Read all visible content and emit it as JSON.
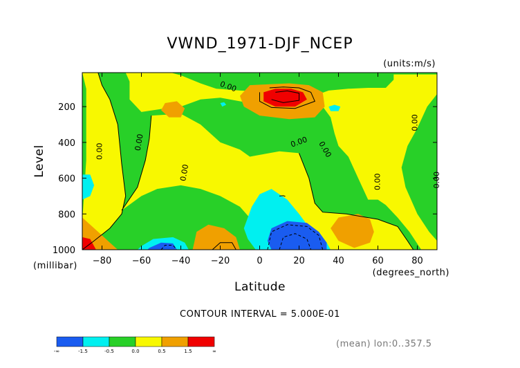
{
  "chart_data": {
    "type": "heatmap",
    "title": "VWND_1971-DJF_NCEP",
    "units": "(units:m/s)",
    "xlabel": "Latitude",
    "xunits": "(degrees_north)",
    "ylabel": "Level",
    "yunits": "(millibar)",
    "xlim": [
      -90,
      90
    ],
    "ylim": [
      1000,
      10
    ],
    "xticks": [
      -80,
      -60,
      -40,
      -20,
      0,
      20,
      40,
      60,
      80
    ],
    "yticks": [
      200,
      400,
      600,
      800,
      1000
    ],
    "contour_interval": "CONTOUR INTERVAL = 5.000E-01",
    "subtitle": "(mean) lon:0..357.5",
    "contour_labels": [
      "0.00",
      "0.00",
      "0.00",
      "0.00",
      "0.00",
      "0.00",
      "0.00",
      "0.00",
      "0.00"
    ],
    "colorbar": {
      "colors": [
        "#1a5cf0",
        "#00f0f0",
        "#28d028",
        "#f8f800",
        "#f0a000",
        "#f00000"
      ],
      "tick_labels": [
        "-∞",
        "-1.5",
        "-0.5",
        "0.0",
        "0.5",
        "1.5",
        "∞"
      ]
    },
    "level_colors": {
      "blue": "#1a5cf0",
      "cyan": "#00f0f0",
      "green": "#28d028",
      "yellow": "#f8f800",
      "orange": "#f0a000",
      "red": "#f00000"
    },
    "regions": [
      {
        "level": "green",
        "points": [
          [
            -90,
            10
          ],
          [
            90,
            10
          ],
          [
            90,
            1000
          ],
          [
            -90,
            1000
          ]
        ]
      },
      {
        "level": "yellow",
        "points": [
          [
            -90,
            10
          ],
          [
            -82,
            10
          ],
          [
            -80,
            80
          ],
          [
            -76,
            160
          ],
          [
            -72,
            300
          ],
          [
            -70,
            520
          ],
          [
            -68,
            700
          ],
          [
            -70,
            800
          ],
          [
            -76,
            880
          ],
          [
            -84,
            950
          ],
          [
            -90,
            1000
          ],
          [
            -90,
            840
          ],
          [
            -88,
            500
          ],
          [
            -88,
            250
          ],
          [
            -88,
            100
          ]
        ]
      },
      {
        "level": "yellow",
        "points": [
          [
            -68,
            10
          ],
          [
            -45,
            10
          ],
          [
            -40,
            25
          ],
          [
            -30,
            70
          ],
          [
            -22,
            100
          ],
          [
            -10,
            110
          ],
          [
            0,
            115
          ],
          [
            10,
            160
          ],
          [
            20,
            190
          ],
          [
            25,
            150
          ],
          [
            35,
            110
          ],
          [
            45,
            100
          ],
          [
            55,
            95
          ],
          [
            64,
            95
          ],
          [
            68,
            50
          ],
          [
            68,
            20
          ],
          [
            90,
            20
          ],
          [
            90,
            130
          ],
          [
            85,
            200
          ],
          [
            80,
            320
          ],
          [
            75,
            420
          ],
          [
            72,
            540
          ],
          [
            74,
            650
          ],
          [
            80,
            800
          ],
          [
            86,
            900
          ],
          [
            90,
            950
          ],
          [
            90,
            1000
          ],
          [
            82,
            1000
          ],
          [
            76,
            900
          ],
          [
            70,
            820
          ],
          [
            64,
            750
          ],
          [
            60,
            720
          ],
          [
            55,
            720
          ],
          [
            50,
            600
          ],
          [
            45,
            480
          ],
          [
            40,
            420
          ],
          [
            38,
            350
          ],
          [
            36,
            260
          ],
          [
            32,
            200
          ],
          [
            20,
            190
          ],
          [
            -5,
            180
          ],
          [
            -20,
            150
          ],
          [
            -30,
            160
          ],
          [
            -40,
            200
          ],
          [
            -48,
            210
          ],
          [
            -60,
            230
          ],
          [
            -66,
            160
          ],
          [
            -66,
            60
          ]
        ]
      },
      {
        "level": "yellow",
        "points": [
          [
            -55,
            250
          ],
          [
            -40,
            240
          ],
          [
            -30,
            300
          ],
          [
            -20,
            400
          ],
          [
            -10,
            440
          ],
          [
            -5,
            480
          ],
          [
            0,
            470
          ],
          [
            10,
            450
          ],
          [
            20,
            460
          ],
          [
            25,
            600
          ],
          [
            28,
            740
          ],
          [
            32,
            790
          ],
          [
            44,
            800
          ],
          [
            60,
            830
          ],
          [
            70,
            870
          ],
          [
            75,
            950
          ],
          [
            78,
            1000
          ],
          [
            0,
            1000
          ],
          [
            -2,
            860
          ],
          [
            -10,
            760
          ],
          [
            -20,
            700
          ],
          [
            -30,
            660
          ],
          [
            -40,
            640
          ],
          [
            -52,
            660
          ],
          [
            -60,
            700
          ],
          [
            -70,
            780
          ],
          [
            -62,
            650
          ],
          [
            -58,
            500
          ],
          [
            -56,
            380
          ]
        ]
      },
      {
        "level": "orange",
        "points": [
          [
            -5,
            80
          ],
          [
            5,
            75
          ],
          [
            15,
            70
          ],
          [
            25,
            80
          ],
          [
            32,
            120
          ],
          [
            33,
            200
          ],
          [
            28,
            260
          ],
          [
            15,
            270
          ],
          [
            0,
            250
          ],
          [
            -8,
            200
          ],
          [
            -10,
            140
          ]
        ]
      },
      {
        "level": "red",
        "points": [
          [
            2,
            120
          ],
          [
            8,
            100
          ],
          [
            16,
            100
          ],
          [
            22,
            120
          ],
          [
            24,
            160
          ],
          [
            18,
            200
          ],
          [
            8,
            200
          ],
          [
            2,
            170
          ]
        ]
      },
      {
        "level": "orange",
        "points": [
          [
            -48,
            180
          ],
          [
            -42,
            170
          ],
          [
            -38,
            210
          ],
          [
            -40,
            260
          ],
          [
            -46,
            260
          ],
          [
            -50,
            220
          ]
        ]
      },
      {
        "level": "orange",
        "points": [
          [
            -90,
            820
          ],
          [
            -86,
            860
          ],
          [
            -80,
            920
          ],
          [
            -76,
            960
          ],
          [
            -72,
            1000
          ],
          [
            -90,
            1000
          ]
        ]
      },
      {
        "level": "red",
        "points": [
          [
            -90,
            930
          ],
          [
            -86,
            940
          ],
          [
            -83,
            1000
          ],
          [
            -90,
            1000
          ]
        ]
      },
      {
        "level": "cyan",
        "points": [
          [
            -86,
            580
          ],
          [
            -84,
            640
          ],
          [
            -86,
            700
          ],
          [
            -90,
            720
          ],
          [
            -90,
            580
          ]
        ]
      },
      {
        "level": "orange",
        "points": [
          [
            -32,
            900
          ],
          [
            -26,
            860
          ],
          [
            -18,
            880
          ],
          [
            -12,
            930
          ],
          [
            -10,
            1000
          ],
          [
            -34,
            1000
          ]
        ]
      },
      {
        "level": "cyan",
        "points": [
          [
            -60,
            980
          ],
          [
            -54,
            940
          ],
          [
            -44,
            930
          ],
          [
            -38,
            960
          ],
          [
            -36,
            1000
          ],
          [
            -62,
            1000
          ]
        ]
      },
      {
        "level": "blue",
        "points": [
          [
            -56,
            990
          ],
          [
            -50,
            960
          ],
          [
            -44,
            965
          ],
          [
            -42,
            1000
          ],
          [
            -57,
            1000
          ]
        ]
      },
      {
        "level": "cyan",
        "points": [
          [
            -4,
            760
          ],
          [
            0,
            690
          ],
          [
            6,
            660
          ],
          [
            14,
            720
          ],
          [
            20,
            800
          ],
          [
            24,
            860
          ],
          [
            30,
            900
          ],
          [
            34,
            960
          ],
          [
            36,
            1000
          ],
          [
            -2,
            1000
          ],
          [
            -6,
            940
          ],
          [
            -8,
            880
          ]
        ]
      },
      {
        "level": "blue",
        "points": [
          [
            6,
            880
          ],
          [
            14,
            840
          ],
          [
            24,
            850
          ],
          [
            30,
            900
          ],
          [
            34,
            960
          ],
          [
            34,
            1000
          ],
          [
            6,
            1000
          ],
          [
            4,
            950
          ]
        ]
      },
      {
        "level": "orange",
        "points": [
          [
            40,
            820
          ],
          [
            50,
            800
          ],
          [
            56,
            830
          ],
          [
            58,
            900
          ],
          [
            56,
            960
          ],
          [
            48,
            990
          ],
          [
            40,
            950
          ],
          [
            36,
            880
          ]
        ]
      },
      {
        "level": "cyan",
        "points": [
          [
            -20,
            180
          ],
          [
            -18,
            175
          ],
          [
            -17,
            190
          ],
          [
            -19,
            200
          ]
        ]
      },
      {
        "level": "cyan",
        "points": [
          [
            35,
            200
          ],
          [
            38,
            190
          ],
          [
            41,
            200
          ],
          [
            40,
            225
          ],
          [
            36,
            225
          ]
        ]
      }
    ],
    "contour_lines": [
      {
        "style": "solid",
        "points": [
          [
            -82,
            10
          ],
          [
            -80,
            80
          ],
          [
            -76,
            160
          ],
          [
            -72,
            300
          ],
          [
            -70,
            520
          ],
          [
            -68,
            700
          ],
          [
            -70,
            800
          ],
          [
            -76,
            880
          ],
          [
            -84,
            950
          ],
          [
            -90,
            1000
          ]
        ]
      },
      {
        "style": "solid",
        "points": [
          [
            -55,
            250
          ],
          [
            -56,
            380
          ],
          [
            -58,
            500
          ],
          [
            -62,
            650
          ],
          [
            -70,
            780
          ]
        ]
      },
      {
        "style": "solid",
        "points": [
          [
            20,
            460
          ],
          [
            25,
            600
          ],
          [
            28,
            740
          ],
          [
            32,
            790
          ],
          [
            44,
            800
          ],
          [
            60,
            830
          ],
          [
            70,
            870
          ],
          [
            75,
            950
          ],
          [
            78,
            1000
          ]
        ]
      },
      {
        "style": "solid",
        "points": [
          [
            5,
            95
          ],
          [
            12,
            90
          ],
          [
            20,
            95
          ],
          [
            26,
            120
          ],
          [
            28,
            170
          ],
          [
            18,
            210
          ],
          [
            6,
            205
          ],
          [
            0,
            170
          ],
          [
            0,
            120
          ]
        ]
      },
      {
        "style": "solid",
        "points": [
          [
            8,
            120
          ],
          [
            14,
            112
          ],
          [
            20,
            125
          ],
          [
            20,
            165
          ],
          [
            12,
            178
          ],
          [
            6,
            160
          ]
        ]
      },
      {
        "style": "solid",
        "points": [
          [
            -24,
            1000
          ],
          [
            -20,
            960
          ],
          [
            -14,
            960
          ],
          [
            -12,
            1000
          ]
        ]
      },
      {
        "style": "dashed",
        "points": [
          [
            4,
            1000
          ],
          [
            6,
            900
          ],
          [
            14,
            860
          ],
          [
            24,
            870
          ],
          [
            30,
            920
          ],
          [
            32,
            1000
          ]
        ]
      },
      {
        "style": "dashed",
        "points": [
          [
            10,
            1000
          ],
          [
            12,
            930
          ],
          [
            18,
            910
          ],
          [
            24,
            940
          ],
          [
            26,
            1000
          ]
        ]
      },
      {
        "style": "dashed",
        "points": [
          [
            -50,
            1000
          ],
          [
            -48,
            975
          ],
          [
            -44,
            975
          ],
          [
            -42,
            1000
          ]
        ]
      },
      {
        "style": "solid",
        "points": [
          [
            10,
            700
          ],
          [
            12,
            698
          ],
          [
            13,
            702
          ]
        ]
      }
    ],
    "contour_label_positions": [
      {
        "x": -81,
        "y": 450,
        "rot": -90
      },
      {
        "x": -61,
        "y": 400,
        "rot": -80
      },
      {
        "x": -38,
        "y": 570,
        "rot": -80
      },
      {
        "x": -16,
        "y": 90,
        "rot": 20
      },
      {
        "x": 20,
        "y": 400,
        "rot": -20
      },
      {
        "x": 33,
        "y": 440,
        "rot": 60
      },
      {
        "x": 60,
        "y": 620,
        "rot": -90
      },
      {
        "x": 79,
        "y": 290,
        "rot": -90
      },
      {
        "x": 90,
        "y": 610,
        "rot": -90
      }
    ]
  }
}
